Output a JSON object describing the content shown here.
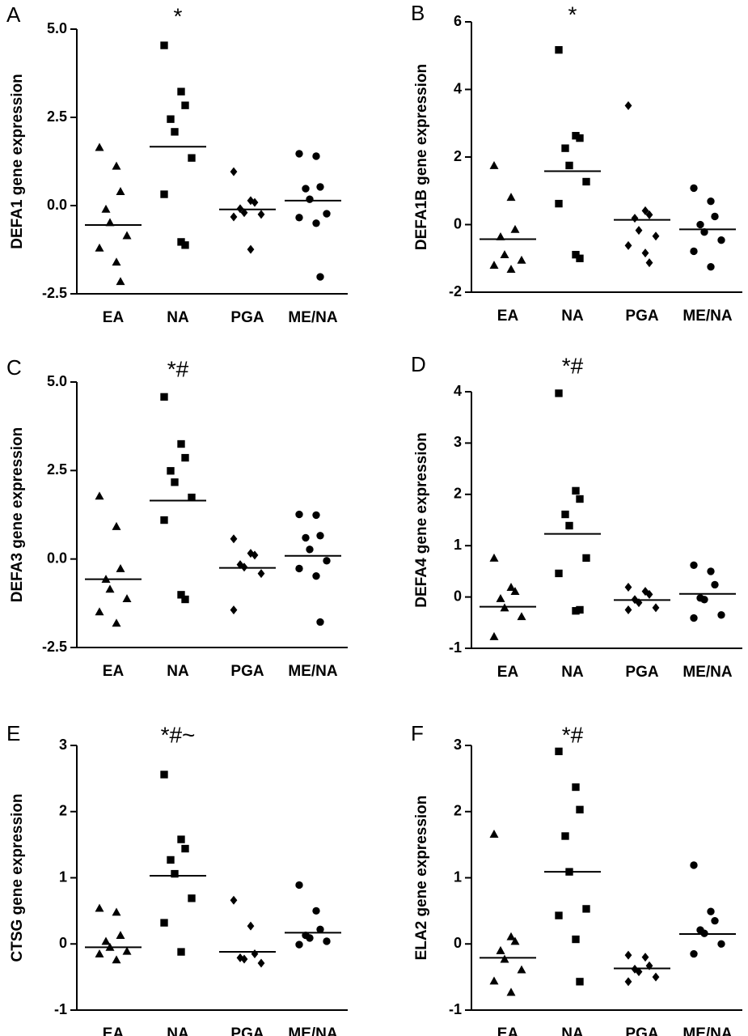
{
  "chart_data": [
    {
      "type": "dot",
      "label": "A",
      "annotation": "*",
      "ylabel": "DEFA1 gene expression",
      "categories": [
        "EA",
        "NA",
        "PGA",
        "ME/NA"
      ],
      "markers": [
        "triangle",
        "square",
        "diamond",
        "circle"
      ],
      "color": "#000000",
      "values": [
        [
          1.65,
          1.12,
          0.4,
          -0.1,
          -0.48,
          -0.85,
          -1.2,
          -1.6,
          -2.15
        ],
        [
          4.54,
          3.23,
          2.84,
          2.45,
          2.09,
          1.35,
          0.32,
          -1.03,
          -1.12
        ],
        [
          0.96,
          0.14,
          0.09,
          -0.09,
          -0.2,
          -0.25,
          -0.32,
          -1.24
        ],
        [
          1.47,
          1.4,
          0.53,
          0.48,
          0.18,
          -0.23,
          -0.34,
          -0.5,
          -2.02
        ]
      ],
      "means": [
        -0.55,
        1.67,
        -0.11,
        0.14
      ],
      "ylim": [
        -2.5,
        5
      ],
      "yticks": [
        {
          "value": 5,
          "label": "5.0"
        },
        2.5,
        {
          "value": 0,
          "label": "0.0"
        },
        -2.5
      ]
    },
    {
      "type": "dot",
      "label": "B",
      "annotation": "*",
      "ylabel": "DEFA1B gene expression",
      "categories": [
        "EA",
        "NA",
        "PGA",
        "ME/NA"
      ],
      "markers": [
        "triangle",
        "square",
        "diamond",
        "circle"
      ],
      "color": "#000000",
      "values": [
        [
          1.75,
          0.81,
          -0.14,
          -0.36,
          -0.89,
          -1.05,
          -1.2,
          -1.32
        ],
        [
          5.17,
          2.63,
          2.56,
          2.26,
          1.75,
          1.27,
          0.62,
          -0.89,
          -1.0
        ],
        [
          3.52,
          0.41,
          0.29,
          0.19,
          -0.17,
          -0.34,
          -0.62,
          -0.84,
          -1.13
        ],
        [
          1.08,
          0.69,
          0.24,
          0.0,
          -0.22,
          -0.46,
          -0.79,
          -1.25
        ]
      ],
      "means": [
        -0.43,
        1.58,
        0.14,
        -0.14
      ],
      "ylim": [
        -2,
        6
      ],
      "yticks": [
        6,
        4,
        2,
        0,
        -2
      ]
    },
    {
      "type": "dot",
      "label": "C",
      "annotation": "*#",
      "ylabel": "DEFA3 gene expression",
      "categories": [
        "EA",
        "NA",
        "PGA",
        "ME/NA"
      ],
      "markers": [
        "triangle",
        "square",
        "diamond",
        "circle"
      ],
      "color": "#000000",
      "values": [
        [
          1.78,
          0.92,
          -0.27,
          -0.57,
          -0.85,
          -1.12,
          -1.49,
          -1.81
        ],
        [
          4.58,
          3.25,
          2.86,
          2.49,
          2.17,
          1.74,
          1.1,
          -1.01,
          -1.14
        ],
        [
          0.57,
          0.16,
          0.11,
          -0.16,
          -0.23,
          -0.41,
          -1.44
        ],
        [
          1.26,
          1.24,
          0.66,
          0.6,
          0.27,
          -0.05,
          -0.27,
          -0.48,
          -1.78
        ]
      ],
      "means": [
        -0.57,
        1.65,
        -0.25,
        0.09
      ],
      "ylim": [
        -2.5,
        5
      ],
      "yticks": [
        {
          "value": 5,
          "label": "5.0"
        },
        2.5,
        {
          "value": 0,
          "label": "0.0"
        },
        -2.5
      ]
    },
    {
      "type": "dot",
      "label": "D",
      "annotation": "*#",
      "ylabel": "DEFA4 gene expression",
      "categories": [
        "EA",
        "NA",
        "PGA",
        "ME/NA"
      ],
      "markers": [
        "triangle",
        "square",
        "diamond",
        "circle"
      ],
      "color": "#000000",
      "values": [
        [
          0.76,
          0.19,
          0.11,
          -0.03,
          -0.21,
          -0.38,
          -0.77
        ],
        [
          3.97,
          2.07,
          1.91,
          1.61,
          1.39,
          0.76,
          0.46,
          -0.27,
          -0.25
        ],
        [
          0.19,
          0.11,
          0.05,
          -0.05,
          -0.11,
          -0.21,
          -0.25
        ],
        [
          0.62,
          0.5,
          0.24,
          -0.02,
          -0.05,
          -0.35,
          -0.41
        ]
      ],
      "means": [
        -0.19,
        1.23,
        -0.06,
        0.06
      ],
      "ylim": [
        -1,
        4
      ],
      "yticks": [
        4,
        3,
        2,
        1,
        0,
        -1
      ]
    },
    {
      "type": "dot",
      "label": "E",
      "annotation": "*#~",
      "ylabel": "CTSG gene expression",
      "categories": [
        "EA",
        "NA",
        "PGA",
        "ME/NA"
      ],
      "markers": [
        "triangle",
        "square",
        "diamond",
        "circle"
      ],
      "color": "#000000",
      "values": [
        [
          0.54,
          0.48,
          0.13,
          0.04,
          -0.05,
          -0.11,
          -0.15,
          -0.24
        ],
        [
          2.56,
          1.58,
          1.44,
          1.27,
          1.06,
          0.69,
          0.32,
          -0.12
        ],
        [
          0.66,
          0.27,
          -0.15,
          -0.21,
          -0.23,
          -0.29
        ],
        [
          0.89,
          0.5,
          0.22,
          0.13,
          0.09,
          0.04,
          -0.01
        ]
      ],
      "means": [
        -0.05,
        1.03,
        -0.12,
        0.17
      ],
      "ylim": [
        -1,
        3
      ],
      "yticks": [
        3,
        2,
        1,
        0,
        -1
      ]
    },
    {
      "type": "dot",
      "label": "F",
      "annotation": "*#",
      "ylabel": "ELA2 gene expression",
      "categories": [
        "EA",
        "NA",
        "PGA",
        "ME/NA"
      ],
      "markers": [
        "triangle",
        "square",
        "diamond",
        "circle"
      ],
      "color": "#000000",
      "values": [
        [
          1.66,
          0.11,
          0.04,
          -0.1,
          -0.23,
          -0.39,
          -0.56,
          -0.73
        ],
        [
          2.91,
          2.37,
          2.03,
          1.63,
          1.09,
          0.53,
          0.43,
          0.07,
          -0.57
        ],
        [
          -0.17,
          -0.2,
          -0.33,
          -0.38,
          -0.42,
          -0.5,
          -0.57
        ],
        [
          1.19,
          0.49,
          0.35,
          0.21,
          0.16,
          0.0,
          -0.15
        ]
      ],
      "means": [
        -0.21,
        1.09,
        -0.37,
        0.15
      ],
      "ylim": [
        -1,
        3
      ],
      "yticks": [
        3,
        2,
        1,
        0,
        -1
      ]
    }
  ]
}
